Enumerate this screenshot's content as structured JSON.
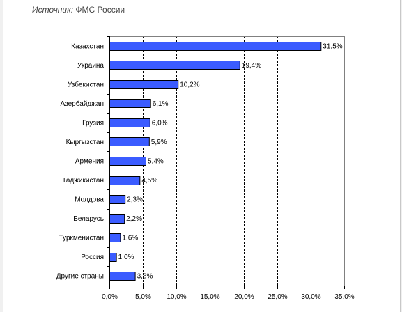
{
  "source": {
    "label": "Источник:",
    "text": "ФМС России"
  },
  "chart_data": {
    "type": "bar",
    "orientation": "horizontal",
    "categories": [
      "Казахстан",
      "Украина",
      "Узбекистан",
      "Азербайджан",
      "Грузия",
      "Кыргызстан",
      "Армения",
      "Таджикистан",
      "Молдова",
      "Беларусь",
      "Туркменистан",
      "Россия",
      "Другие страны"
    ],
    "values": [
      31.5,
      19.4,
      10.2,
      6.1,
      6.0,
      5.9,
      5.4,
      4.5,
      2.3,
      2.2,
      1.6,
      1.0,
      3.8
    ],
    "value_labels": [
      "31,5%",
      "19,4%",
      "10,2%",
      "6,1%",
      "6,0%",
      "5,9%",
      "5,4%",
      "4,5%",
      "2,3%",
      "2,2%",
      "1,6%",
      "1,0%",
      "3,8%"
    ],
    "xlim": [
      0,
      35
    ],
    "xticks": [
      0,
      5,
      10,
      15,
      20,
      25,
      30,
      35
    ],
    "xtick_labels": [
      "0,0%",
      "5,0%",
      "10,0%",
      "15,0%",
      "20,0%",
      "25,0%",
      "30,0%",
      "35,0%"
    ],
    "grid": "vertical-dashed",
    "bar_color": "#3b5cff",
    "title": "",
    "xlabel": "",
    "ylabel": ""
  }
}
